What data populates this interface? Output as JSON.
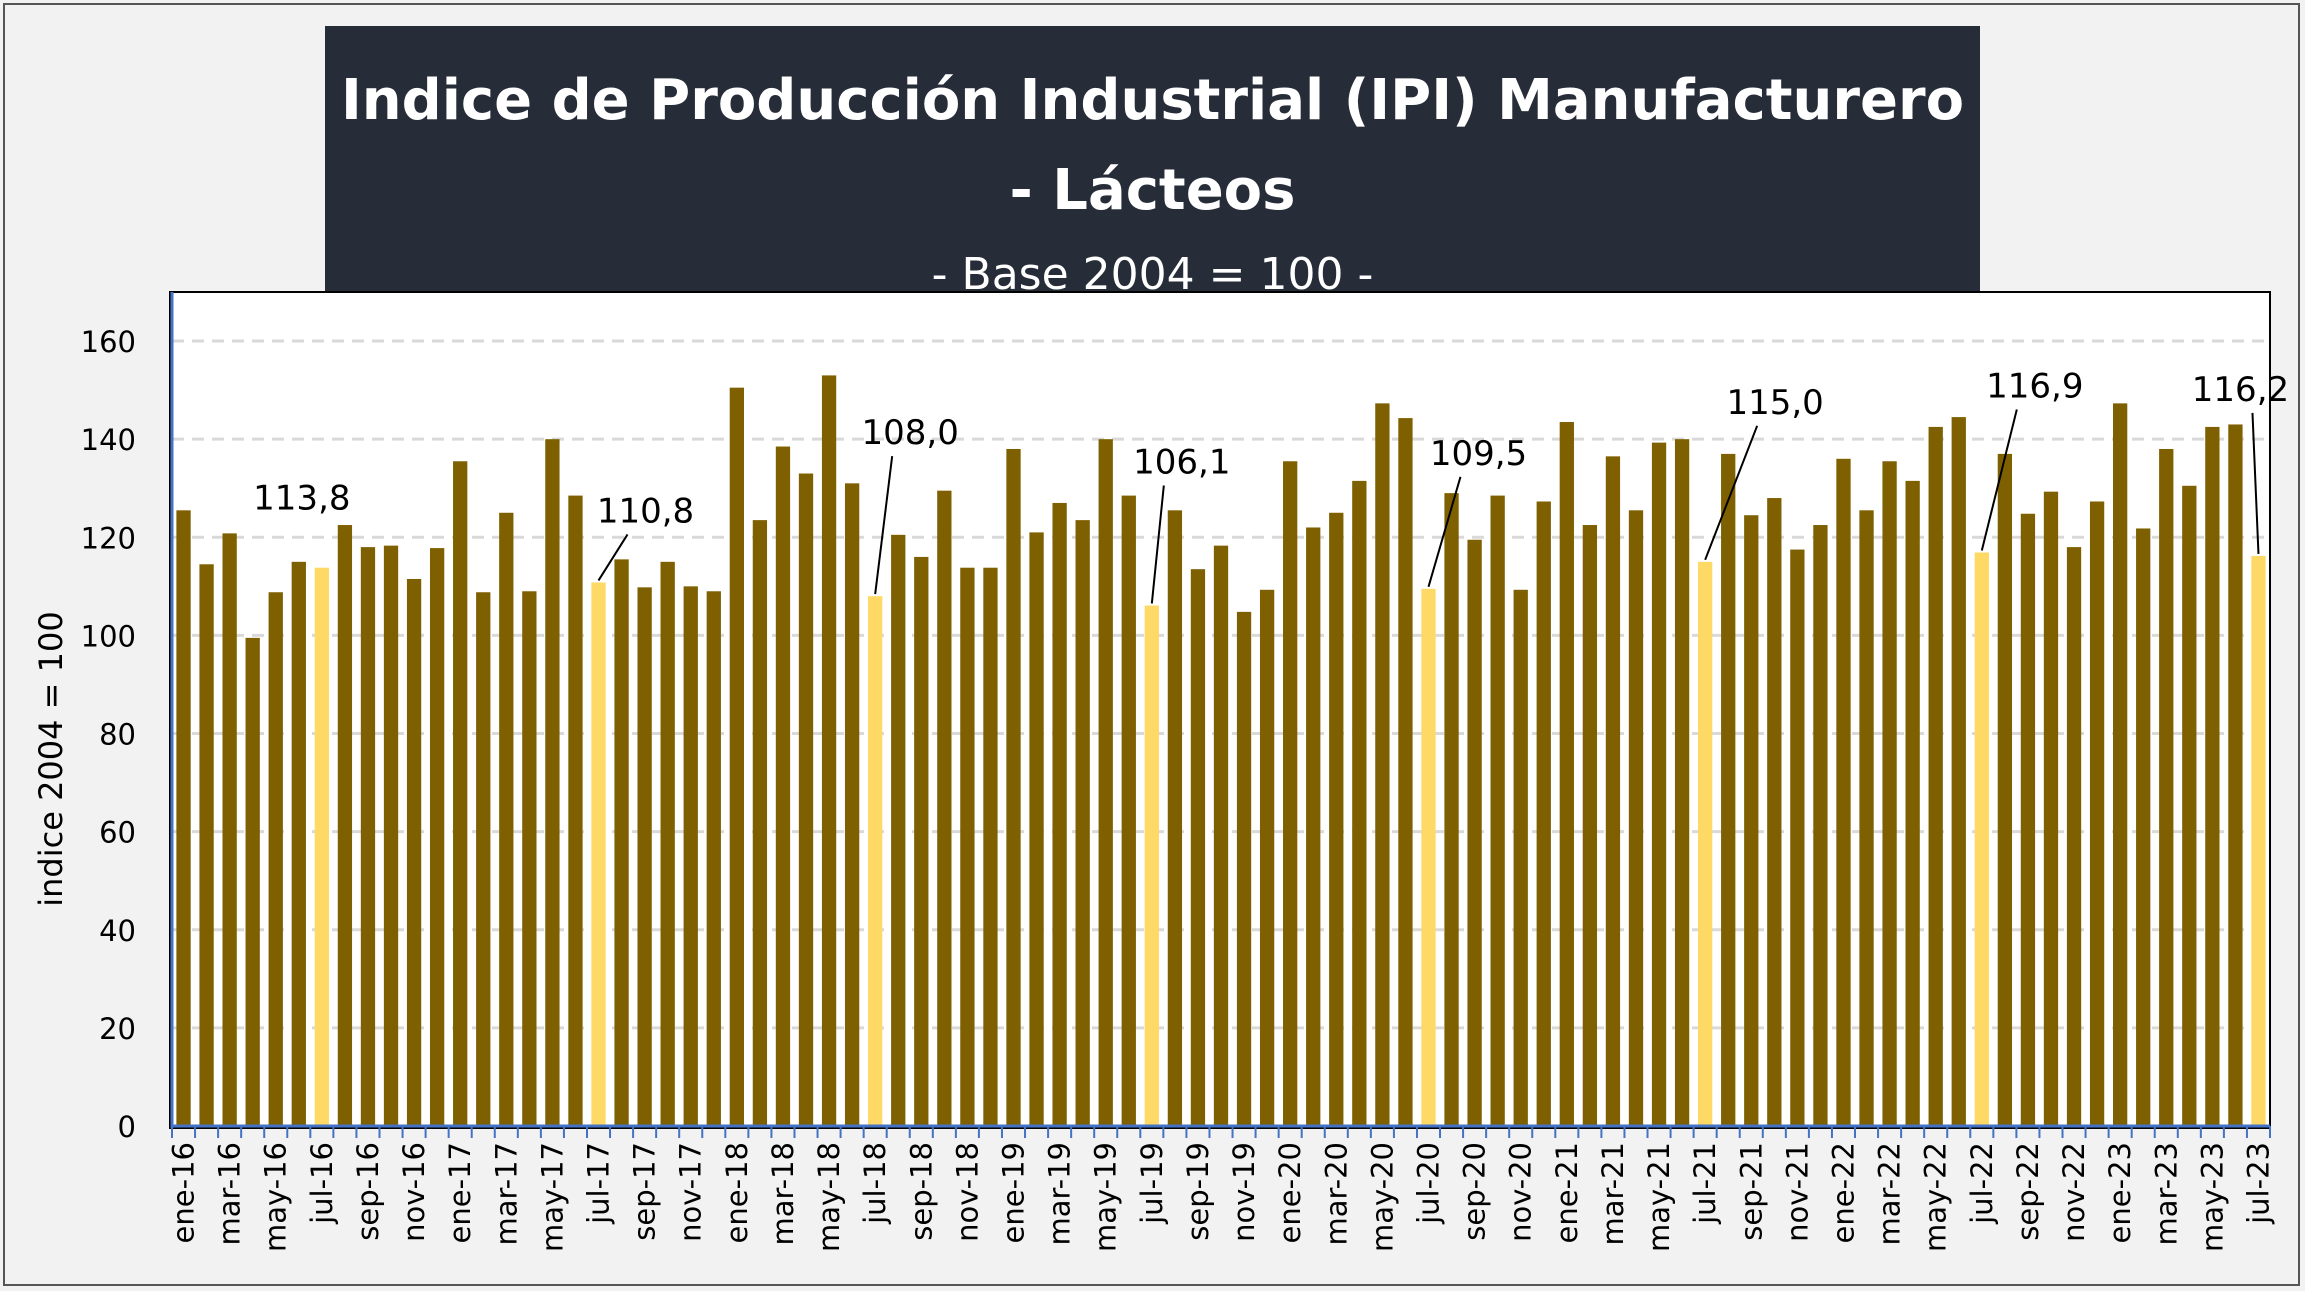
{
  "title_line": "Indice de Producción Industrial (IPI) Manufacturero - Lácteos",
  "subtitle": "- Base 2004 = 100 -",
  "colors": {
    "bar": "#7f6000",
    "highlight": "#ffd966",
    "title_bg": "#262c38",
    "grid": "#d9d9d9"
  },
  "chart_data": {
    "type": "bar",
    "title": "Indice de Producción Industrial (IPI) Manufacturero - Lácteos",
    "subtitle": "- Base 2004 = 100 -",
    "ylabel": "indice 2004 = 100",
    "xlabel": "",
    "ylim": [
      0,
      170
    ],
    "yticks": [
      0,
      20,
      40,
      60,
      80,
      100,
      120,
      140,
      160
    ],
    "grid": true,
    "categories": [
      "ene-16",
      "feb-16",
      "mar-16",
      "abr-16",
      "may-16",
      "jun-16",
      "jul-16",
      "ago-16",
      "sep-16",
      "oct-16",
      "nov-16",
      "dic-16",
      "ene-17",
      "feb-17",
      "mar-17",
      "abr-17",
      "may-17",
      "jun-17",
      "jul-17",
      "ago-17",
      "sep-17",
      "oct-17",
      "nov-17",
      "dic-17",
      "ene-18",
      "feb-18",
      "mar-18",
      "abr-18",
      "may-18",
      "jun-18",
      "jul-18",
      "ago-18",
      "sep-18",
      "oct-18",
      "nov-18",
      "dic-18",
      "ene-19",
      "feb-19",
      "mar-19",
      "abr-19",
      "may-19",
      "jun-19",
      "jul-19",
      "ago-19",
      "sep-19",
      "oct-19",
      "nov-19",
      "dic-19",
      "ene-20",
      "feb-20",
      "mar-20",
      "abr-20",
      "may-20",
      "jun-20",
      "jul-20",
      "ago-20",
      "sep-20",
      "oct-20",
      "nov-20",
      "dic-20",
      "ene-21",
      "feb-21",
      "mar-21",
      "abr-21",
      "may-21",
      "jun-21",
      "jul-21",
      "ago-21",
      "sep-21",
      "oct-21",
      "nov-21",
      "dic-21",
      "ene-22",
      "feb-22",
      "mar-22",
      "abr-22",
      "may-22",
      "jun-22",
      "jul-22",
      "ago-22",
      "sep-22",
      "oct-22",
      "nov-22",
      "dic-22",
      "ene-23",
      "feb-23",
      "mar-23",
      "abr-23",
      "may-23",
      "jun-23",
      "jul-23"
    ],
    "tick_labels": [
      "ene-16",
      "mar-16",
      "may-16",
      "jul-16",
      "sep-16",
      "nov-16",
      "ene-17",
      "mar-17",
      "may-17",
      "jul-17",
      "sep-17",
      "nov-17",
      "ene-18",
      "mar-18",
      "may-18",
      "jul-18",
      "sep-18",
      "nov-18",
      "ene-19",
      "mar-19",
      "may-19",
      "jul-19",
      "sep-19",
      "nov-19",
      "ene-20",
      "mar-20",
      "may-20",
      "jul-20",
      "sep-20",
      "nov-20",
      "ene-21",
      "mar-21",
      "may-21",
      "jul-21",
      "sep-21",
      "nov-21",
      "ene-22",
      "mar-22",
      "may-22",
      "jul-22",
      "sep-22",
      "nov-22",
      "ene-23",
      "mar-23",
      "may-23",
      "jul-23"
    ],
    "values": [
      125.5,
      114.5,
      120.8,
      99.5,
      108.8,
      115.0,
      113.8,
      122.5,
      118.0,
      118.3,
      111.5,
      117.8,
      135.5,
      108.8,
      125.0,
      109.0,
      140.0,
      128.5,
      110.8,
      115.5,
      109.8,
      115.0,
      110.0,
      109.0,
      150.5,
      123.5,
      138.5,
      133.0,
      153.0,
      131.0,
      108.0,
      120.5,
      116.0,
      129.5,
      113.8,
      113.8,
      138.0,
      121.0,
      127.0,
      123.5,
      140.0,
      128.5,
      106.1,
      125.5,
      113.5,
      118.3,
      104.8,
      109.3,
      135.5,
      122.0,
      125.0,
      131.5,
      147.3,
      144.3,
      109.5,
      129.0,
      119.5,
      128.5,
      109.3,
      127.3,
      143.5,
      122.5,
      136.5,
      125.5,
      139.3,
      140.0,
      115.0,
      137.0,
      124.5,
      128.0,
      117.5,
      122.5,
      136.0,
      125.5,
      135.5,
      131.5,
      142.5,
      144.5,
      116.9,
      137.0,
      124.8,
      129.3,
      118.0,
      127.3,
      147.3,
      121.8,
      138.0,
      130.5,
      142.5,
      143.0,
      116.2
    ],
    "highlight_categories": [
      "jul-16",
      "jul-17",
      "jul-18",
      "jul-19",
      "jul-20",
      "jul-21",
      "jul-22",
      "jul-23"
    ],
    "data_labels": [
      {
        "category": "jul-16",
        "text": "113,8"
      },
      {
        "category": "jul-17",
        "text": "110,8"
      },
      {
        "category": "jul-18",
        "text": "108,0"
      },
      {
        "category": "jul-19",
        "text": "106,1"
      },
      {
        "category": "jul-20",
        "text": "109,5"
      },
      {
        "category": "jul-21",
        "text": "115,0"
      },
      {
        "category": "jul-22",
        "text": "116,9"
      },
      {
        "category": "jul-23",
        "text": "116,2"
      }
    ]
  }
}
